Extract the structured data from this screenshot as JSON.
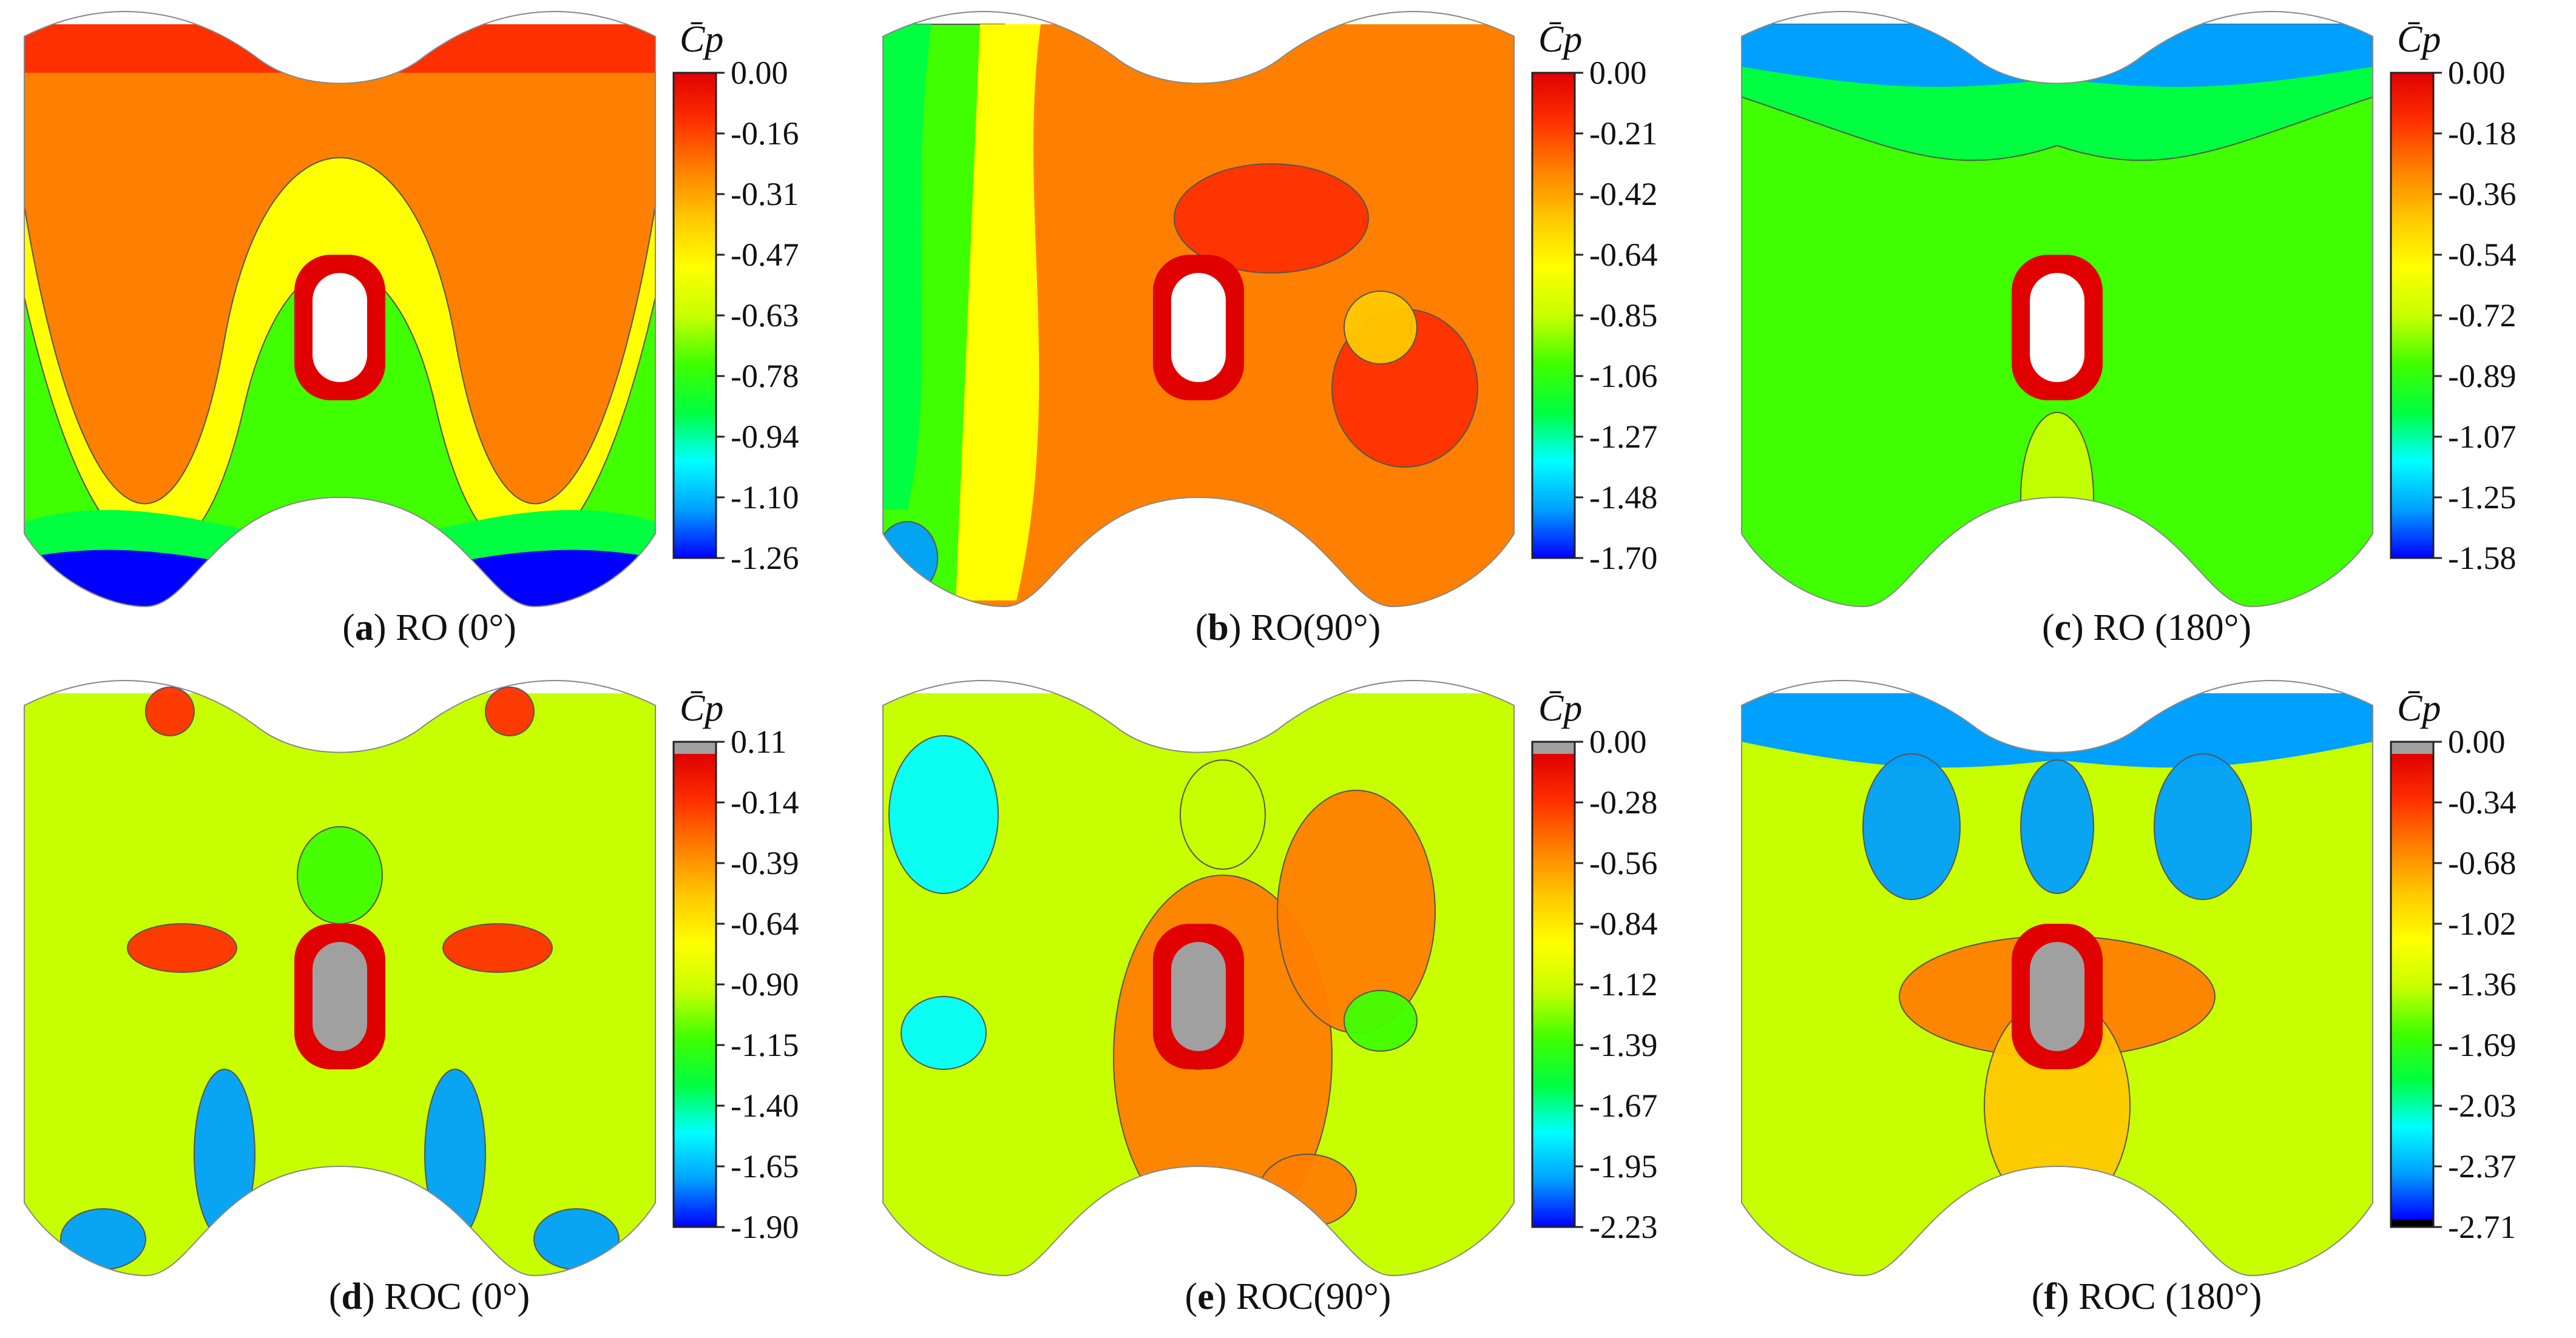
{
  "colorscale": [
    "#0000ff",
    "#00a0ff",
    "#00ffff",
    "#00ff40",
    "#40ff00",
    "#c8ff00",
    "#ffff00",
    "#ffc800",
    "#ff8000",
    "#ff3000",
    "#e00000"
  ],
  "chart_data": [
    {
      "type": "heatmap",
      "panel_letter": "a",
      "title_rest": " RO (0°)",
      "colorbar_label": "C̄p",
      "colorbar_ticks": [
        "0.00",
        "-0.16",
        "-0.31",
        "-0.47",
        "-0.63",
        "-0.78",
        "-0.94",
        "-1.10",
        "-1.26"
      ],
      "range": [
        -1.26,
        0.0
      ],
      "top_cap": null,
      "bottom_cap": null,
      "pattern": "ro0"
    },
    {
      "type": "heatmap",
      "panel_letter": "b",
      "title_rest": " RO(90°)",
      "colorbar_label": "C̄p",
      "colorbar_ticks": [
        "0.00",
        "-0.21",
        "-0.42",
        "-0.64",
        "-0.85",
        "-1.06",
        "-1.27",
        "-1.48",
        "-1.70"
      ],
      "range": [
        -1.7,
        0.0
      ],
      "top_cap": null,
      "bottom_cap": null,
      "pattern": "ro90"
    },
    {
      "type": "heatmap",
      "panel_letter": "c",
      "title_rest": " RO (180°)",
      "colorbar_label": "C̄p",
      "colorbar_ticks": [
        "0.00",
        "-0.18",
        "-0.36",
        "-0.54",
        "-0.72",
        "-0.89",
        "-1.07",
        "-1.25",
        "-1.58"
      ],
      "range": [
        -1.58,
        0.0
      ],
      "top_cap": null,
      "bottom_cap": null,
      "pattern": "ro180"
    },
    {
      "type": "heatmap",
      "panel_letter": "d",
      "title_rest": " ROC (0°)",
      "colorbar_label": "C̄p",
      "colorbar_ticks": [
        "0.11",
        "-0.14",
        "-0.39",
        "-0.64",
        "-0.90",
        "-1.15",
        "-1.40",
        "-1.65",
        "-1.90"
      ],
      "range": [
        -1.9,
        0.11
      ],
      "top_cap": "#a0a0a0",
      "bottom_cap": null,
      "pattern": "roc0"
    },
    {
      "type": "heatmap",
      "panel_letter": "e",
      "title_rest": " ROC(90°)",
      "colorbar_label": "C̄p",
      "colorbar_ticks": [
        "0.00",
        "-0.28",
        "-0.56",
        "-0.84",
        "-1.12",
        "-1.39",
        "-1.67",
        "-1.95",
        "-2.23"
      ],
      "range": [
        -2.23,
        0.0
      ],
      "top_cap": "#a0a0a0",
      "bottom_cap": null,
      "pattern": "roc90"
    },
    {
      "type": "heatmap",
      "panel_letter": "f",
      "title_rest": " ROC (180°)",
      "colorbar_label": "C̄p",
      "colorbar_ticks": [
        "0.00",
        "-0.34",
        "-0.68",
        "-1.02",
        "-1.36",
        "-1.69",
        "-2.03",
        "-2.37",
        "-2.71"
      ],
      "range": [
        -2.71,
        0.0
      ],
      "top_cap": "#a0a0a0",
      "bottom_cap": "#000000",
      "pattern": "roc180"
    }
  ]
}
